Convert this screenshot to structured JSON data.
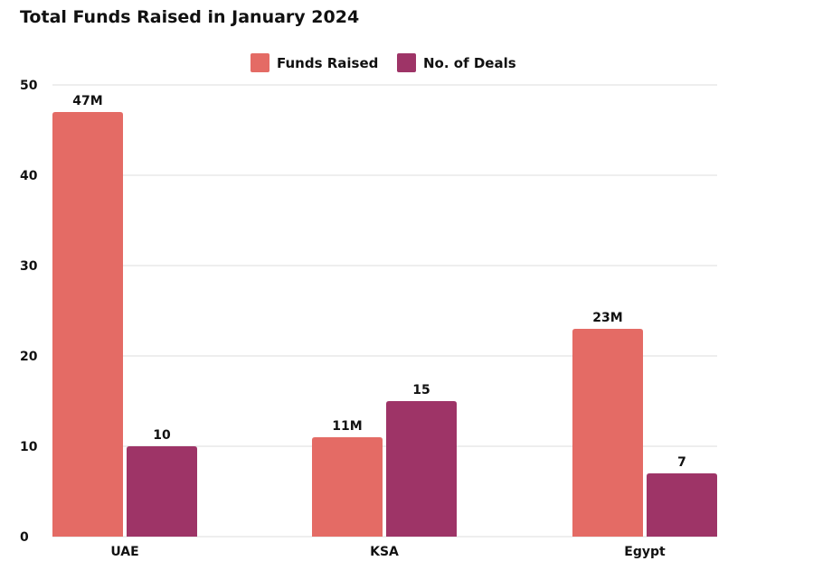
{
  "chart_data": {
    "type": "bar",
    "title": "Total Funds Raised in January 2024",
    "categories": [
      "UAE",
      "KSA",
      "Egypt"
    ],
    "series": [
      {
        "name": "Funds Raised",
        "values": [
          47,
          11,
          23
        ],
        "labels": [
          "47M",
          "11M",
          "23M"
        ],
        "color": "#E46B65"
      },
      {
        "name": "No. of Deals",
        "values": [
          10,
          15,
          7
        ],
        "labels": [
          "10",
          "15",
          "7"
        ],
        "color": "#9E3467"
      }
    ],
    "y_ticks": [
      "0",
      "10",
      "20",
      "30",
      "40",
      "50"
    ],
    "ylim": [
      0,
      50
    ],
    "xlabel": "",
    "ylabel": "",
    "grid": true,
    "legend": "top-center",
    "gridline_color": "#dddddd"
  }
}
